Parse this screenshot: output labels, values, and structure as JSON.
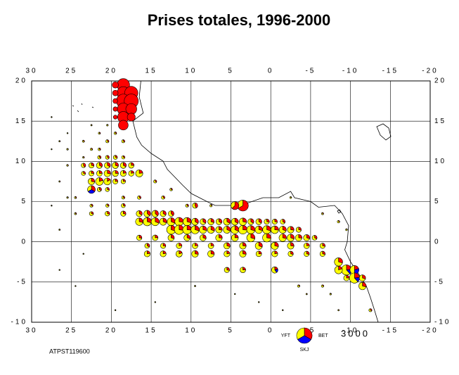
{
  "chart_data": {
    "type": "pie-map",
    "title": "Prises totales, 1996-2000",
    "footnote": "ATPST119600",
    "xlim": [
      30,
      -20
    ],
    "ylim": [
      -10,
      20
    ],
    "xticks": [
      30,
      25,
      20,
      15,
      10,
      5,
      0,
      -5,
      -10,
      -15,
      -20
    ],
    "yticks": [
      20,
      15,
      10,
      5,
      0,
      -5,
      -10
    ],
    "grid": true,
    "series": [
      {
        "name": "YFT",
        "color": "#ffff00"
      },
      {
        "name": "BET",
        "color": "#ff0000"
      },
      {
        "name": "SKJ",
        "color": "#0000ff"
      }
    ],
    "scale_value": 3000,
    "pies": [
      [
        18.5,
        19.5,
        0,
        2000,
        0
      ],
      [
        18.5,
        18.5,
        0,
        2000,
        0
      ],
      [
        17.5,
        18.5,
        0,
        2200,
        0
      ],
      [
        18.5,
        17.5,
        0,
        2400,
        0
      ],
      [
        17.5,
        17.5,
        0,
        2500,
        0
      ],
      [
        18.5,
        16.5,
        0,
        1800,
        0
      ],
      [
        17.5,
        16.5,
        0,
        1500,
        0
      ],
      [
        18.5,
        15.5,
        0,
        1600,
        0
      ],
      [
        18.5,
        14.5,
        0,
        1200,
        0
      ],
      [
        19.5,
        19.5,
        0,
        500,
        0
      ],
      [
        19.5,
        18.5,
        0,
        400,
        0
      ],
      [
        19.5,
        17.5,
        0,
        300,
        0
      ],
      [
        19.5,
        16.5,
        0,
        250,
        0
      ],
      [
        19.5,
        15.5,
        0,
        200,
        0
      ],
      [
        17.5,
        15.5,
        0,
        800,
        0
      ],
      [
        21.5,
        9.5,
        300,
        150,
        0
      ],
      [
        20.5,
        9.5,
        300,
        150,
        0
      ],
      [
        19.5,
        9.5,
        350,
        150,
        0
      ],
      [
        18.5,
        9.5,
        300,
        150,
        0
      ],
      [
        17.5,
        9.5,
        300,
        100,
        0
      ],
      [
        22.5,
        9.5,
        250,
        100,
        0
      ],
      [
        23.5,
        9.5,
        150,
        100,
        0
      ],
      [
        16.5,
        8.5,
        500,
        150,
        0
      ],
      [
        17.5,
        8.5,
        300,
        80,
        0
      ],
      [
        18.5,
        8.5,
        350,
        100,
        0
      ],
      [
        19.5,
        8.5,
        350,
        120,
        0
      ],
      [
        20.5,
        8.5,
        400,
        150,
        0
      ],
      [
        21.5,
        8.5,
        300,
        100,
        0
      ],
      [
        22.5,
        8.5,
        250,
        80,
        0
      ],
      [
        23.5,
        8.5,
        150,
        60,
        0
      ],
      [
        22.5,
        7.5,
        400,
        150,
        0
      ],
      [
        21.5,
        7.5,
        600,
        150,
        0
      ],
      [
        20.5,
        7.5,
        500,
        100,
        0
      ],
      [
        19.5,
        7.5,
        250,
        80,
        0
      ],
      [
        18.5,
        7.5,
        200,
        60,
        0
      ],
      [
        22.5,
        6.5,
        250,
        250,
        250
      ],
      [
        21.5,
        6.5,
        150,
        80,
        0
      ],
      [
        20.5,
        6.5,
        150,
        60,
        0
      ],
      [
        19.5,
        10.5,
        150,
        60,
        0
      ],
      [
        20.5,
        10.5,
        120,
        60,
        0
      ],
      [
        21.5,
        10.5,
        100,
        50,
        0
      ],
      [
        18.5,
        10.5,
        100,
        40,
        0
      ],
      [
        16.5,
        3.5,
        300,
        150,
        0
      ],
      [
        15.5,
        3.5,
        350,
        200,
        0
      ],
      [
        14.5,
        3.5,
        350,
        200,
        0
      ],
      [
        13.5,
        3.5,
        300,
        150,
        0
      ],
      [
        12.5,
        3.5,
        250,
        150,
        0
      ],
      [
        16.5,
        2.5,
        500,
        200,
        0
      ],
      [
        15.5,
        2.5,
        600,
        250,
        0
      ],
      [
        14.5,
        2.5,
        550,
        250,
        0
      ],
      [
        13.5,
        2.5,
        450,
        200,
        0
      ],
      [
        12.5,
        2.5,
        550,
        250,
        0
      ],
      [
        11.5,
        2.5,
        650,
        250,
        0
      ],
      [
        10.5,
        2.5,
        600,
        250,
        0
      ],
      [
        9.5,
        2.5,
        400,
        200,
        0
      ],
      [
        8.5,
        2.5,
        300,
        150,
        0
      ],
      [
        7.5,
        2.5,
        350,
        150,
        0
      ],
      [
        6.5,
        2.5,
        300,
        150,
        0
      ],
      [
        5.5,
        2.5,
        400,
        200,
        0
      ],
      [
        4.5,
        2.5,
        400,
        200,
        0
      ],
      [
        3.5,
        2.5,
        500,
        200,
        0
      ],
      [
        2.5,
        2.5,
        300,
        150,
        0
      ],
      [
        1.5,
        2.5,
        300,
        150,
        0
      ],
      [
        0.5,
        2.5,
        250,
        100,
        0
      ],
      [
        -0.5,
        2.5,
        250,
        100,
        0
      ],
      [
        -1.5,
        2.5,
        200,
        100,
        0
      ],
      [
        12.5,
        1.5,
        700,
        300,
        0
      ],
      [
        11.5,
        1.5,
        800,
        300,
        0
      ],
      [
        10.5,
        1.5,
        700,
        250,
        0
      ],
      [
        9.5,
        1.5,
        600,
        250,
        0
      ],
      [
        8.5,
        1.5,
        500,
        200,
        0
      ],
      [
        7.5,
        1.5,
        450,
        200,
        0
      ],
      [
        6.5,
        1.5,
        400,
        150,
        0
      ],
      [
        5.5,
        1.5,
        450,
        200,
        0
      ],
      [
        4.5,
        1.5,
        550,
        250,
        0
      ],
      [
        3.5,
        1.5,
        700,
        250,
        0
      ],
      [
        2.5,
        1.5,
        600,
        250,
        0
      ],
      [
        1.5,
        1.5,
        500,
        200,
        0
      ],
      [
        0.5,
        1.5,
        600,
        250,
        0
      ],
      [
        -0.5,
        1.5,
        550,
        200,
        0
      ],
      [
        -1.5,
        1.5,
        450,
        200,
        0
      ],
      [
        -2.5,
        1.5,
        400,
        150,
        0
      ],
      [
        -3.5,
        1.5,
        250,
        100,
        0
      ],
      [
        16.5,
        0.5,
        250,
        100,
        0
      ],
      [
        14.5,
        0.5,
        300,
        100,
        0
      ],
      [
        12.5,
        0.5,
        350,
        150,
        0
      ],
      [
        10.5,
        0.5,
        350,
        150,
        0
      ],
      [
        8.5,
        0.5,
        350,
        150,
        0
      ],
      [
        6.5,
        0.5,
        400,
        150,
        0
      ],
      [
        4.5,
        0.5,
        450,
        150,
        0
      ],
      [
        2.5,
        0.5,
        600,
        250,
        0
      ],
      [
        0.5,
        0.5,
        650,
        250,
        0
      ],
      [
        -1.5,
        0.5,
        500,
        200,
        0
      ],
      [
        -2.5,
        0.5,
        450,
        200,
        0
      ],
      [
        -3.5,
        0.5,
        400,
        150,
        0
      ],
      [
        -4.5,
        0.5,
        350,
        150,
        0
      ],
      [
        -5.5,
        0.5,
        200,
        100,
        0
      ],
      [
        15.5,
        -0.5,
        200,
        100,
        0
      ],
      [
        13.5,
        -0.5,
        250,
        100,
        0
      ],
      [
        11.5,
        -0.5,
        300,
        100,
        0
      ],
      [
        9.5,
        -0.5,
        300,
        100,
        0
      ],
      [
        7.5,
        -0.5,
        300,
        100,
        0
      ],
      [
        5.5,
        -0.5,
        350,
        150,
        0
      ],
      [
        3.5,
        -0.5,
        400,
        150,
        0
      ],
      [
        1.5,
        -0.5,
        450,
        200,
        0
      ],
      [
        -0.5,
        -0.5,
        500,
        200,
        0
      ],
      [
        -2.5,
        -0.5,
        400,
        150,
        0
      ],
      [
        -4.5,
        -0.5,
        300,
        100,
        0
      ],
      [
        -6.5,
        -0.5,
        250,
        100,
        0
      ],
      [
        15.5,
        -1.5,
        350,
        100,
        0
      ],
      [
        13.5,
        -1.5,
        350,
        100,
        0
      ],
      [
        11.5,
        -1.5,
        400,
        100,
        0
      ],
      [
        9.5,
        -1.5,
        400,
        150,
        0
      ],
      [
        7.5,
        -1.5,
        400,
        150,
        0
      ],
      [
        5.5,
        -1.5,
        350,
        100,
        0
      ],
      [
        3.5,
        -1.5,
        400,
        150,
        0
      ],
      [
        1.5,
        -1.5,
        300,
        100,
        0
      ],
      [
        -0.5,
        -1.5,
        350,
        100,
        0
      ],
      [
        -2.5,
        -1.5,
        250,
        100,
        0
      ],
      [
        -4.5,
        -1.5,
        250,
        100,
        0
      ],
      [
        -6.5,
        -1.5,
        250,
        100,
        0
      ],
      [
        5.5,
        -3.5,
        250,
        100,
        0
      ],
      [
        3.5,
        -3.5,
        300,
        100,
        0
      ],
      [
        -0.5,
        -3.5,
        300,
        100,
        100
      ],
      [
        -8.5,
        -2.5,
        600,
        250,
        0
      ],
      [
        -9.5,
        -3.5,
        800,
        300,
        200
      ],
      [
        -8.5,
        -3.5,
        600,
        150,
        0
      ],
      [
        -10.5,
        -3.5,
        500,
        200,
        300
      ],
      [
        -10.5,
        -4.5,
        800,
        300,
        200
      ],
      [
        -11.5,
        -4.5,
        350,
        150,
        0
      ],
      [
        -11.5,
        -5.5,
        500,
        200,
        0
      ],
      [
        -9.5,
        -4.5,
        300,
        100,
        0
      ],
      [
        -12.5,
        -8.5,
        80,
        40,
        0
      ],
      [
        3.5,
        4.5,
        500,
        1000,
        0
      ],
      [
        4.5,
        4.5,
        300,
        500,
        0
      ],
      [
        9.5,
        4.5,
        200,
        150,
        0
      ],
      [
        -2.5,
        5.5,
        40,
        10,
        0
      ],
      [
        27.5,
        15.5,
        5,
        2,
        0
      ],
      [
        25.5,
        13.5,
        10,
        5,
        0
      ],
      [
        26.5,
        12.5,
        20,
        10,
        0
      ],
      [
        27.5,
        11.5,
        15,
        5,
        0
      ],
      [
        25.5,
        11.5,
        30,
        10,
        0
      ],
      [
        23.5,
        12.5,
        40,
        20,
        0
      ],
      [
        21.5,
        13.5,
        40,
        20,
        0
      ],
      [
        22.5,
        14.5,
        20,
        10,
        0
      ],
      [
        20.5,
        12.5,
        80,
        40,
        0
      ],
      [
        21.5,
        11.5,
        60,
        30,
        0
      ],
      [
        26.5,
        7.5,
        20,
        10,
        0
      ],
      [
        25.5,
        5.5,
        30,
        10,
        0
      ],
      [
        27.5,
        4.5,
        10,
        5,
        0
      ],
      [
        24.5,
        3.5,
        40,
        20,
        0
      ],
      [
        26.5,
        1.5,
        20,
        10,
        0
      ],
      [
        23.5,
        -1.5,
        15,
        5,
        0
      ],
      [
        26.5,
        -3.5,
        5,
        2,
        0
      ],
      [
        24.5,
        -5.5,
        10,
        5,
        0
      ],
      [
        19.5,
        -8.5,
        10,
        5,
        0
      ],
      [
        14.5,
        -7.5,
        10,
        5,
        0
      ],
      [
        9.5,
        -5.5,
        20,
        10,
        0
      ],
      [
        4.5,
        -6.5,
        15,
        5,
        0
      ],
      [
        1.5,
        -7.5,
        10,
        5,
        0
      ],
      [
        -1.5,
        -8.5,
        10,
        5,
        0
      ],
      [
        -4.5,
        -6.5,
        20,
        10,
        0
      ],
      [
        -7.5,
        -6.5,
        30,
        10,
        0
      ],
      [
        -8.5,
        -8.5,
        20,
        10,
        0
      ],
      [
        -6.5,
        -5.5,
        60,
        20,
        0
      ],
      [
        -3.5,
        -5.5,
        60,
        20,
        0
      ],
      [
        -6.5,
        3.5,
        40,
        20,
        0
      ],
      [
        -8.5,
        2.5,
        60,
        20,
        0
      ],
      [
        -9.5,
        1.5,
        40,
        10,
        0
      ],
      [
        12.5,
        6.5,
        60,
        30,
        0
      ],
      [
        14.5,
        7.5,
        80,
        40,
        0
      ],
      [
        13.5,
        5.5,
        100,
        50,
        0
      ],
      [
        10.5,
        4.5,
        80,
        40,
        0
      ],
      [
        7.5,
        4.5,
        60,
        20,
        0
      ],
      [
        18.5,
        5.5,
        80,
        40,
        0
      ],
      [
        16.5,
        5.5,
        100,
        50,
        0
      ],
      [
        18.5,
        4.5,
        150,
        60,
        0
      ],
      [
        20.5,
        4.5,
        100,
        40,
        0
      ],
      [
        22.5,
        4.5,
        80,
        40,
        0
      ],
      [
        22.5,
        3.5,
        150,
        60,
        0
      ],
      [
        20.5,
        3.5,
        200,
        80,
        0
      ],
      [
        18.5,
        3.5,
        250,
        100,
        0
      ],
      [
        24.5,
        5.5,
        40,
        20,
        0
      ],
      [
        23.5,
        10.5,
        30,
        15,
        0
      ],
      [
        25.5,
        9.5,
        30,
        15,
        0
      ],
      [
        22.5,
        11.5,
        50,
        20,
        0
      ],
      [
        18.5,
        12.5,
        80,
        40,
        0
      ],
      [
        19.5,
        13.5,
        60,
        30,
        0
      ],
      [
        20.5,
        14.5,
        30,
        10,
        0
      ]
    ]
  }
}
